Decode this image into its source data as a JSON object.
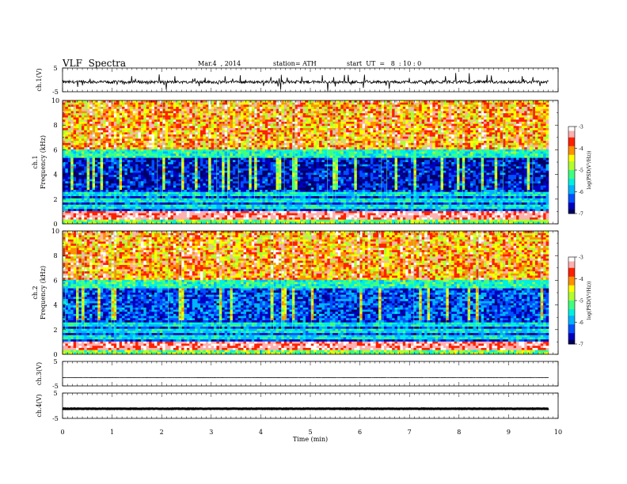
{
  "header": {
    "title": "VLF  Spectra",
    "date": "Mar.4  , 2014",
    "station": "station= ATH",
    "start": "start  UT  =   8  : 10 : 0"
  },
  "colors": {
    "spectrogram_scale": [
      "#000060",
      "#0000c0",
      "#0050ff",
      "#00b4ff",
      "#00f0e0",
      "#40ff80",
      "#b0ff30",
      "#ffff00",
      "#ff9000",
      "#ff2000",
      "#ffb0b0",
      "#ffffff"
    ]
  },
  "chart_data": [
    {
      "type": "line",
      "panel": "ch1-waveform",
      "ylabel": "ch.1(V)",
      "ylim": [
        -5,
        5
      ],
      "yticks": [
        "5",
        "-5"
      ],
      "baseline": -0.9
    },
    {
      "type": "heatmap",
      "panel": "ch1-spectrogram",
      "ylabel": "Frequency  (kHz)",
      "ylabel_channel": "ch.1",
      "ylim": [
        0,
        10
      ],
      "yticks": [
        "10",
        "8",
        "6",
        "4",
        "2",
        "0"
      ],
      "colorbar": {
        "label": "log(PSD(V²/Hz))",
        "range": [
          -7,
          -3
        ],
        "ticks": [
          "-3",
          "-4",
          "-5",
          "-6",
          "-7"
        ]
      }
    },
    {
      "type": "heatmap",
      "panel": "ch2-spectrogram",
      "ylabel": "Frequency  (kHz)",
      "ylabel_channel": "ch.2",
      "ylim": [
        0,
        10
      ],
      "yticks": [
        "10",
        "8",
        "6",
        "4",
        "2",
        "0"
      ],
      "colorbar": {
        "label": "log(PSD(V²/Hz))",
        "range": [
          -7,
          -3
        ],
        "ticks": [
          "-3",
          "-4",
          "-5",
          "-6",
          "-7"
        ]
      }
    },
    {
      "type": "line",
      "panel": "ch3-waveform",
      "ylabel": "ch.3(V)",
      "ylim": [
        -5,
        5
      ],
      "yticks": [
        "5",
        "-5"
      ],
      "baseline": -1.6
    },
    {
      "type": "line",
      "panel": "ch4-waveform",
      "ylabel": "ch.4(V)",
      "ylim": [
        -5,
        5
      ],
      "yticks": [
        "5",
        "-5"
      ],
      "baseline": -1.2,
      "xlabel": "Time  (min)",
      "xlim": [
        0,
        10
      ],
      "xticks": [
        "0",
        "1",
        "2",
        "3",
        "4",
        "5",
        "6",
        "7",
        "8",
        "9",
        "10"
      ]
    }
  ]
}
